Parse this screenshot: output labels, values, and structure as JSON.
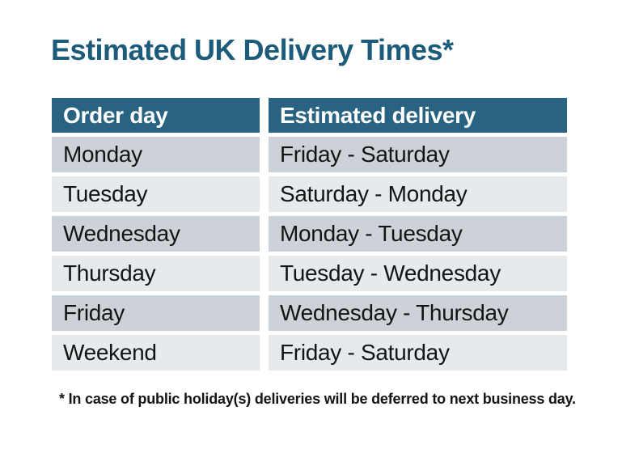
{
  "title": "Estimated UK Delivery Times*",
  "table": {
    "headers": [
      "Order day",
      "Estimated delivery"
    ],
    "rows": [
      {
        "order_day": "Monday",
        "estimated_delivery": "Friday - Saturday"
      },
      {
        "order_day": "Tuesday",
        "estimated_delivery": "Saturday - Monday"
      },
      {
        "order_day": "Wednesday",
        "estimated_delivery": "Monday - Tuesday"
      },
      {
        "order_day": "Thursday",
        "estimated_delivery": "Tuesday - Wednesday"
      },
      {
        "order_day": "Friday",
        "estimated_delivery": "Wednesday - Thursday"
      },
      {
        "order_day": "Weekend",
        "estimated_delivery": "Friday - Saturday"
      }
    ]
  },
  "footnote": "* In case of public holiday(s) deliveries will be deferred to next business day.",
  "colors": {
    "title_color": "#1d5b7b",
    "header_bg": "#296382",
    "header_text": "#ffffff",
    "row_dark": "#cdd2d8",
    "row_light": "#e7eaed",
    "body_text": "#141414"
  },
  "chart_data": {
    "type": "table",
    "title": "Estimated UK Delivery Times*",
    "columns": [
      "Order day",
      "Estimated delivery"
    ],
    "rows": [
      [
        "Monday",
        "Friday - Saturday"
      ],
      [
        "Tuesday",
        "Saturday - Monday"
      ],
      [
        "Wednesday",
        "Monday - Tuesday"
      ],
      [
        "Thursday",
        "Tuesday - Wednesday"
      ],
      [
        "Friday",
        "Wednesday - Thursday"
      ],
      [
        "Weekend",
        "Friday - Saturday"
      ]
    ],
    "note": "* In case of public holiday(s) deliveries will be deferred to next business day."
  }
}
